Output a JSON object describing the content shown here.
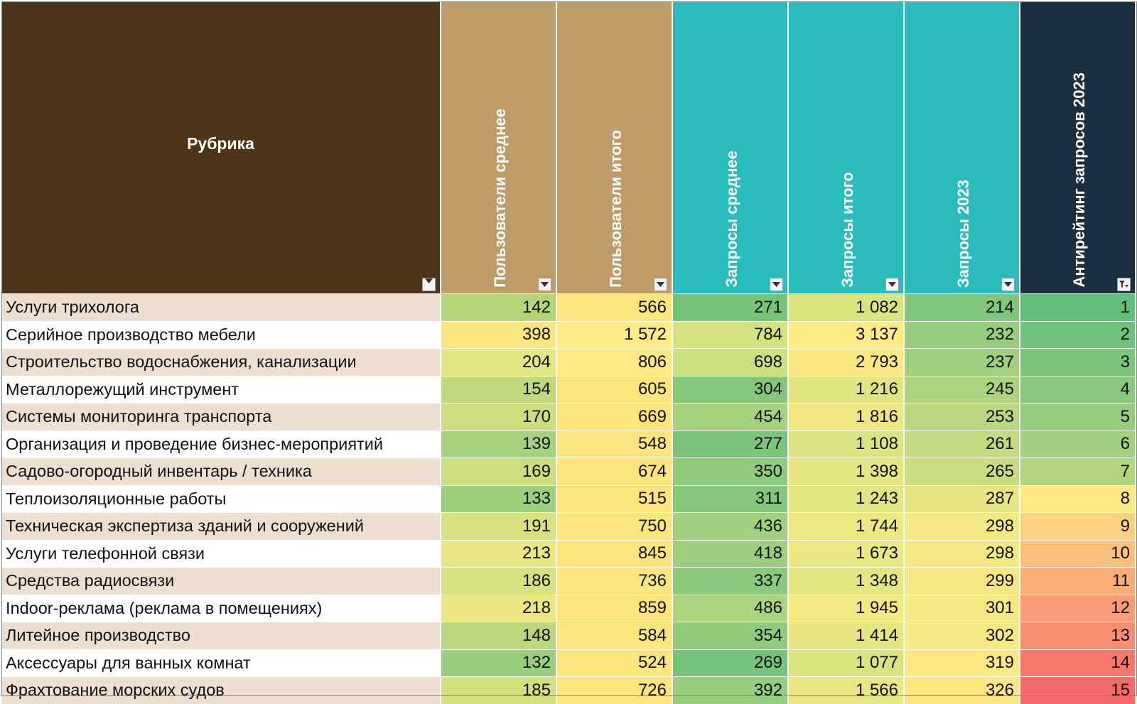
{
  "table": {
    "headers": [
      {
        "label": "Рубрика",
        "bg": "#4e3418"
      },
      {
        "label": "Пользователи среднее",
        "bg": "#bf9b68"
      },
      {
        "label": "Пользователи итого",
        "bg": "#bf9b68"
      },
      {
        "label": "Запросы среднее",
        "bg": "#2abcbc"
      },
      {
        "label": "Запросы итого",
        "bg": "#2abcbc"
      },
      {
        "label": "Запросы 2023",
        "bg": "#2abcbc"
      },
      {
        "label": "Антирейтинг запросов 2023",
        "bg": "#1a3040"
      }
    ],
    "filter_icons": [
      "dropdown-arrow-icon",
      "dropdown-arrow-icon",
      "dropdown-arrow-icon",
      "dropdown-arrow-icon",
      "dropdown-arrow-icon",
      "dropdown-arrow-icon",
      "filter-applied-icon"
    ],
    "row_colors": {
      "odd": "#eedfd0",
      "even": "#ffffff"
    },
    "rows": [
      {
        "name": "Услуги трихолога",
        "values": [
          "142",
          "566",
          "271",
          "1 082",
          "214",
          "1"
        ],
        "colors": [
          "#b4d676",
          "#fde57e",
          "#78c37a",
          "#d9e47e",
          "#80c67c",
          "#63be7b"
        ]
      },
      {
        "name": "Серийное производство мебели",
        "values": [
          "398",
          "1 572",
          "784",
          "3 137",
          "232",
          "2"
        ],
        "colors": [
          "#fde57e",
          "#ffeb84",
          "#d4e37d",
          "#ffeb84",
          "#99cd7e",
          "#6fc27c"
        ]
      },
      {
        "name": "Строительство водоснабжения, канализации",
        "values": [
          "204",
          "806",
          "698",
          "2 793",
          "237",
          "3"
        ],
        "colors": [
          "#e4e681",
          "#fee883",
          "#cbe07e",
          "#fde783",
          "#a0cf7e",
          "#7cc57d"
        ]
      },
      {
        "name": "Металлорежущий инструмент",
        "values": [
          "154",
          "605",
          "304",
          "1 216",
          "245",
          "4"
        ],
        "colors": [
          "#c0d97c",
          "#fde57e",
          "#83c67c",
          "#e1e581",
          "#acd37f",
          "#89c87d"
        ]
      },
      {
        "name": "Системы мониторинга транспорта",
        "values": [
          "170",
          "669",
          "454",
          "1 816",
          "253",
          "5"
        ],
        "colors": [
          "#cede7e",
          "#fde57e",
          "#a6d17e",
          "#efe882",
          "#b8d780",
          "#96cc7e"
        ]
      },
      {
        "name": "Организация и проведение бизнес-мероприятий",
        "values": [
          "139",
          "548",
          "277",
          "1 108",
          "261",
          "6"
        ],
        "colors": [
          "#a6d17e",
          "#fde57e",
          "#7ac47c",
          "#dbe481",
          "#c2da80",
          "#a3d07f"
        ]
      },
      {
        "name": "Садово-огородный инвентарь / техника",
        "values": [
          "169",
          "674",
          "350",
          "1 398",
          "265",
          "7"
        ],
        "colors": [
          "#ccde7e",
          "#fde57e",
          "#8fca7d",
          "#e6e682",
          "#c8dc80",
          "#b0d480"
        ]
      },
      {
        "name": "Теплоизоляционные работы",
        "values": [
          "133",
          "515",
          "311",
          "1 243",
          "287",
          "8"
        ],
        "colors": [
          "#9ccf7e",
          "#fde57e",
          "#85c77c",
          "#e2e581",
          "#e7e582",
          "#fde883"
        ]
      },
      {
        "name": "Техническая экспертиза зданий и сооружений",
        "values": [
          "191",
          "750",
          "436",
          "1 744",
          "298",
          "9"
        ],
        "colors": [
          "#dae27f",
          "#fde57e",
          "#a1d07e",
          "#ede882",
          "#f4e883",
          "#fdd17f"
        ]
      },
      {
        "name": "Услуги телефонной связи",
        "values": [
          "213",
          "845",
          "418",
          "1 673",
          "298",
          "10"
        ],
        "colors": [
          "#eae681",
          "#fde57e",
          "#9cce7e",
          "#ebe782",
          "#f4e883",
          "#fcc07c"
        ]
      },
      {
        "name": "Средства радиосвязи",
        "values": [
          "186",
          "736",
          "337",
          "1 348",
          "299",
          "11"
        ],
        "colors": [
          "#d6e17f",
          "#fde57e",
          "#8bc97d",
          "#e5e682",
          "#f5e883",
          "#fbad78"
        ]
      },
      {
        "name": "Indoor-реклама (реклама в помещениях)",
        "values": [
          "218",
          "859",
          "486",
          "1 945",
          "301",
          "12"
        ],
        "colors": [
          "#ede782",
          "#fde57e",
          "#add37f",
          "#f2e983",
          "#f6e883",
          "#fa9d75"
        ]
      },
      {
        "name": "Литейное производство",
        "values": [
          "148",
          "584",
          "354",
          "1 414",
          "302",
          "13"
        ],
        "colors": [
          "#b9d77c",
          "#fde57e",
          "#90ca7d",
          "#e7e682",
          "#f8e883",
          "#f98e72"
        ]
      },
      {
        "name": "Аксессуары для ванных комнат",
        "values": [
          "132",
          "524",
          "269",
          "1 077",
          "319",
          "14"
        ],
        "colors": [
          "#9ace7e",
          "#fde57e",
          "#76c37b",
          "#d9e47e",
          "#fde883",
          "#f8786e"
        ]
      },
      {
        "name": "Фрахтование морских судов",
        "values": [
          "185",
          "726",
          "392",
          "1 566",
          "326",
          "15"
        ],
        "colors": [
          "#d4e07e",
          "#fde57e",
          "#97cd7e",
          "#e9e782",
          "#fee783",
          "#f8696b"
        ]
      }
    ]
  }
}
